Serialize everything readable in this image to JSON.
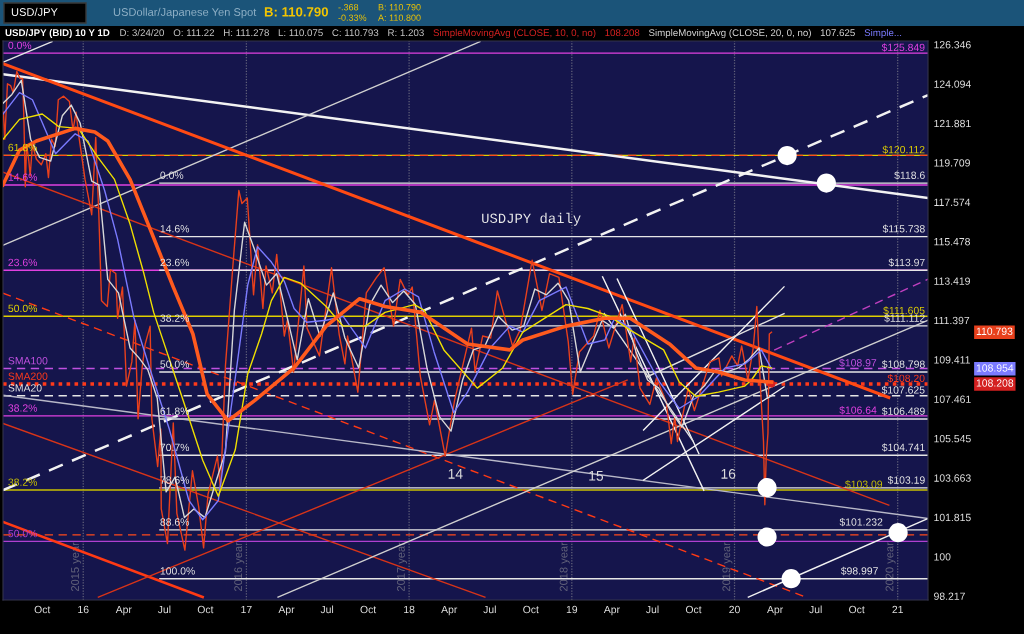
{
  "chart_data": {
    "type": "line",
    "title": "USDJPY daily",
    "subtitle": "USD/JPY (BID) 10 Y 1D",
    "log": true,
    "legend": "top",
    "xlim": [
      "2015-07-05",
      "2021-03-10"
    ],
    "ylim": [
      98.04,
      126.55
    ],
    "xticks": [
      {
        "value": "2015-10-01",
        "label": "Oct"
      },
      {
        "value": "2016-01-01",
        "label": "16"
      },
      {
        "value": "2016-04-01",
        "label": "Apr"
      },
      {
        "value": "2016-07-01",
        "label": "Jul"
      },
      {
        "value": "2016-10-01",
        "label": "Oct"
      },
      {
        "value": "2017-01-01",
        "label": "17"
      },
      {
        "value": "2017-04-01",
        "label": "Apr"
      },
      {
        "value": "2017-07-01",
        "label": "Jul"
      },
      {
        "value": "2017-10-01",
        "label": "Oct"
      },
      {
        "value": "2018-01-01",
        "label": "18"
      },
      {
        "value": "2018-04-01",
        "label": "Apr"
      },
      {
        "value": "2018-07-01",
        "label": "Jul"
      },
      {
        "value": "2018-10-01",
        "label": "Oct"
      },
      {
        "value": "2019-01-01",
        "label": "19"
      },
      {
        "value": "2019-04-01",
        "label": "Apr"
      },
      {
        "value": "2019-07-01",
        "label": "Jul"
      },
      {
        "value": "2019-10-01",
        "label": "Oct"
      },
      {
        "value": "2020-01-01",
        "label": "20"
      },
      {
        "value": "2020-04-01",
        "label": "Apr"
      },
      {
        "value": "2020-07-01",
        "label": "Jul"
      },
      {
        "value": "2020-10-01",
        "label": "Oct"
      },
      {
        "value": "2021-01-01",
        "label": "21"
      }
    ],
    "yticks": [
      98.217,
      100,
      101.815,
      103.663,
      105.545,
      107.461,
      109.411,
      111.397,
      113.419,
      115.478,
      117.574,
      119.709,
      121.881,
      124.094,
      126.346
    ],
    "series": [
      {
        "color": "#e8401c",
        "x": [
          "2015-07-06",
          "2015-07-09",
          "2015-07-15",
          "2015-07-22",
          "2015-07-28",
          "2015-08-05",
          "2015-08-12",
          "2015-08-18",
          "2015-08-21",
          "2015-08-24",
          "2015-08-27",
          "2015-09-01",
          "2015-09-04",
          "2015-09-09",
          "2015-09-18",
          "2015-09-29",
          "2015-10-09",
          "2015-10-15",
          "2015-10-22",
          "2015-10-30",
          "2015-11-06",
          "2015-11-18",
          "2015-12-01",
          "2015-12-09",
          "2015-12-16",
          "2015-12-22",
          "2016-01-05",
          "2016-01-20",
          "2016-01-29",
          "2016-02-05",
          "2016-02-11",
          "2016-02-24",
          "2016-03-02",
          "2016-03-14",
          "2016-03-18",
          "2016-03-29",
          "2016-04-07",
          "2016-04-19",
          "2016-04-26",
          "2016-05-03",
          "2016-05-12",
          "2016-05-19",
          "2016-05-30",
          "2016-06-03",
          "2016-06-16",
          "2016-06-23",
          "2016-06-24",
          "2016-07-08",
          "2016-07-21",
          "2016-07-29",
          "2016-08-16",
          "2016-09-02",
          "2016-09-16",
          "2016-09-27",
          "2016-10-07",
          "2016-10-28",
          "2016-11-04",
          "2016-11-15",
          "2016-12-01",
          "2016-12-15",
          "2016-12-22",
          "2017-01-03",
          "2017-01-17",
          "2017-01-26",
          "2017-02-07",
          "2017-02-14",
          "2017-02-28",
          "2017-03-10",
          "2017-03-27",
          "2017-04-03",
          "2017-04-17",
          "2017-05-10",
          "2017-05-17",
          "2017-06-14",
          "2017-07-11",
          "2017-07-28",
          "2017-08-10",
          "2017-08-16",
          "2017-09-08",
          "2017-09-27",
          "2017-10-20",
          "2017-11-06",
          "2017-11-27",
          "2017-12-12",
          "2017-12-29",
          "2018-01-08",
          "2018-01-26",
          "2018-02-16",
          "2018-02-27",
          "2018-03-23",
          "2018-04-13",
          "2018-05-21",
          "2018-05-29",
          "2018-06-15",
          "2018-07-03",
          "2018-07-18",
          "2018-08-21",
          "2018-09-07",
          "2018-10-04",
          "2018-10-26",
          "2018-11-12",
          "2018-12-03",
          "2018-12-24",
          "2019-01-03",
          "2019-01-18",
          "2019-02-19",
          "2019-03-05",
          "2019-03-25",
          "2019-04-24",
          "2019-05-13",
          "2019-05-21",
          "2019-06-03",
          "2019-06-25",
          "2019-07-10",
          "2019-08-01",
          "2019-08-12",
          "2019-08-20",
          "2019-08-26",
          "2019-09-19",
          "2019-10-03",
          "2019-11-07",
          "2019-11-27",
          "2019-12-03",
          "2019-12-26",
          "2020-01-08",
          "2020-01-17",
          "2020-01-31",
          "2020-02-12",
          "2020-02-20",
          "2020-02-28",
          "2020-03-06",
          "2020-03-09",
          "2020-03-12",
          "2020-03-16",
          "2020-03-19",
          "2020-03-24"
        ],
        "values": [
          122.5,
          121.0,
          124.1,
          124.0,
          123.6,
          124.8,
          124.4,
          124.4,
          122.0,
          118.4,
          120.7,
          119.8,
          119.0,
          120.7,
          119.9,
          119.6,
          120.2,
          118.9,
          121.0,
          120.6,
          123.2,
          123.4,
          123.1,
          121.5,
          122.5,
          121.2,
          118.8,
          116.9,
          121.1,
          116.9,
          112.4,
          112.1,
          114.0,
          113.8,
          111.5,
          113.1,
          108.1,
          109.3,
          111.4,
          106.5,
          109.0,
          110.2,
          111.1,
          106.5,
          104.2,
          106.0,
          102.2,
          100.6,
          106.3,
          102.0,
          100.3,
          104.0,
          102.3,
          100.4,
          102.9,
          104.7,
          103.1,
          109.1,
          114.0,
          118.2,
          117.5,
          117.8,
          112.7,
          115.3,
          112.0,
          114.2,
          112.8,
          114.8,
          110.6,
          111.4,
          108.8,
          114.2,
          111.0,
          109.6,
          114.1,
          110.7,
          109.2,
          110.6,
          107.8,
          112.8,
          113.6,
          114.1,
          111.1,
          113.5,
          112.7,
          113.1,
          108.6,
          106.2,
          107.4,
          104.7,
          107.4,
          111.0,
          108.8,
          110.6,
          110.5,
          112.9,
          110.1,
          110.9,
          114.5,
          111.9,
          113.8,
          113.6,
          110.3,
          107.7,
          109.8,
          110.6,
          111.9,
          110.0,
          112.2,
          109.3,
          110.5,
          108.0,
          107.2,
          108.5,
          107.3,
          105.3,
          106.6,
          105.4,
          108.0,
          106.9,
          109.3,
          109.5,
          108.6,
          109.6,
          109.1,
          110.1,
          108.4,
          110.0,
          112.1,
          108.1,
          105.4,
          102.4,
          104.6,
          105.8,
          110.7,
          110.793
        ]
      },
      {
        "name": "SimpleMovingAvg (CLOSE, 10, 0, no)",
        "color": "#d42020",
        "marker": "circle",
        "x": [
          "2020-03-24"
        ],
        "values": [
          108.208
        ]
      },
      {
        "name": "SimpleMovingAvg (CLOSE, 20, 0, no)",
        "color": "#d8d8d8",
        "x": [
          "2015-07-05",
          "2015-07-25",
          "2015-08-15",
          "2015-09-05",
          "2015-09-25",
          "2015-10-20",
          "2015-11-15",
          "2015-12-05",
          "2015-12-25",
          "2016-01-20",
          "2016-02-05",
          "2016-02-25",
          "2016-03-20",
          "2016-04-15",
          "2016-05-05",
          "2016-05-25",
          "2016-06-15",
          "2016-07-05",
          "2016-07-25",
          "2016-08-15",
          "2016-09-05",
          "2016-09-30",
          "2016-10-25",
          "2016-11-15",
          "2016-12-05",
          "2016-12-28",
          "2017-01-20",
          "2017-02-15",
          "2017-03-10",
          "2017-04-05",
          "2017-04-25",
          "2017-05-20",
          "2017-06-15",
          "2017-07-15",
          "2017-08-10",
          "2017-09-10",
          "2017-10-05",
          "2017-10-30",
          "2017-11-25",
          "2017-12-20",
          "2018-01-15",
          "2018-02-10",
          "2018-03-10",
          "2018-04-05",
          "2018-05-01",
          "2018-05-25",
          "2018-06-20",
          "2018-07-20",
          "2018-08-20",
          "2018-09-15",
          "2018-10-10",
          "2018-11-05",
          "2018-12-01",
          "2018-12-25",
          "2019-01-20",
          "2019-02-15",
          "2019-03-10",
          "2019-04-05",
          "2019-05-01",
          "2019-05-25",
          "2019-06-20",
          "2019-07-15",
          "2019-08-10",
          "2019-09-05",
          "2019-10-01",
          "2019-10-25",
          "2019-11-20",
          "2019-12-15",
          "2020-01-10",
          "2020-02-01",
          "2020-02-25",
          "2020-03-15",
          "2020-03-24"
        ],
        "values": [
          123.0,
          123.5,
          124.3,
          121.0,
          120.0,
          119.8,
          122.3,
          122.9,
          121.9,
          118.7,
          118.5,
          113.5,
          112.8,
          110.0,
          109.5,
          108.9,
          107.5,
          103.0,
          103.7,
          101.8,
          102.2,
          101.8,
          103.5,
          104.9,
          111.9,
          116.5,
          115.0,
          113.2,
          113.8,
          111.3,
          109.4,
          112.5,
          110.6,
          112.8,
          110.5,
          109.0,
          112.2,
          113.2,
          112.3,
          112.9,
          112.2,
          109.0,
          106.6,
          105.9,
          108.4,
          109.9,
          110.1,
          111.6,
          110.9,
          111.1,
          113.0,
          112.7,
          113.3,
          112.4,
          108.8,
          110.2,
          111.4,
          111.0,
          111.7,
          109.8,
          108.4,
          108.0,
          106.9,
          106.1,
          107.6,
          108.1,
          108.9,
          108.8,
          109.0,
          109.4,
          110.0,
          107.5,
          107.625
        ]
      },
      {
        "name": "Simple...",
        "color": "#7b7bff",
        "x": [
          "2015-07-05",
          "2015-08-11",
          "2015-09-09",
          "2015-10-31",
          "2015-12-14",
          "2016-01-12",
          "2016-02-18",
          "2016-03-18",
          "2016-04-24",
          "2016-05-29",
          "2016-07-12",
          "2016-08-25",
          "2016-09-25",
          "2016-10-30",
          "2016-12-07",
          "2017-01-04",
          "2017-01-26",
          "2017-02-26",
          "2017-03-27",
          "2017-04-18",
          "2017-05-16",
          "2017-06-29",
          "2017-08-06",
          "2017-09-25",
          "2017-11-08",
          "2017-12-22",
          "2018-01-22",
          "2018-02-26",
          "2018-04-11",
          "2018-05-12",
          "2018-07-02",
          "2018-08-15",
          "2018-09-13",
          "2018-10-20",
          "2018-12-19",
          "2019-02-06",
          "2019-03-16",
          "2019-04-07",
          "2019-05-12",
          "2019-07-17",
          "2019-08-30",
          "2019-10-13",
          "2019-12-11",
          "2020-01-24",
          "2020-03-01",
          "2020-03-24"
        ],
        "values": [
          122.4,
          123.6,
          123.2,
          120.2,
          121.3,
          120.9,
          118.2,
          115.6,
          111.5,
          109.0,
          106.0,
          102.6,
          101.7,
          102.6,
          108.5,
          113.2,
          115.2,
          114.4,
          113.4,
          112.0,
          111.3,
          111.4,
          111.6,
          110.0,
          112.4,
          113.0,
          112.6,
          109.8,
          106.8,
          107.8,
          110.0,
          111.1,
          110.8,
          112.4,
          113.1,
          110.2,
          110.4,
          111.5,
          111.0,
          108.3,
          107.0,
          107.6,
          109.0,
          109.2,
          109.9,
          108.954
        ]
      },
      {
        "color": "#f0e000",
        "x": [
          "2015-07-05",
          "2015-08-11",
          "2015-10-01",
          "2015-11-07",
          "2015-12-21",
          "2016-02-03",
          "2016-03-11",
          "2016-04-15",
          "2016-05-16",
          "2016-06-07",
          "2016-08-12",
          "2016-09-25",
          "2016-10-30",
          "2016-12-07",
          "2017-01-04",
          "2017-02-04",
          "2017-02-26",
          "2017-03-27",
          "2017-05-03",
          "2017-06-29",
          "2017-08-06",
          "2017-09-25",
          "2017-11-08",
          "2018-01-13",
          "2018-02-04",
          "2018-03-20",
          "2018-06-03",
          "2018-07-30",
          "2018-09-13",
          "2018-12-19",
          "2019-02-06",
          "2019-03-27",
          "2019-05-12",
          "2019-07-26",
          "2019-08-30",
          "2019-10-06",
          "2019-11-26",
          "2020-01-24",
          "2020-02-08",
          "2020-03-01",
          "2020-03-24"
        ],
        "values": [
          121.0,
          122.1,
          122.4,
          121.7,
          121.6,
          120.0,
          118.8,
          116.4,
          113.8,
          111.8,
          107.4,
          104.5,
          102.8,
          105.0,
          108.7,
          110.7,
          112.4,
          113.6,
          113.3,
          112.1,
          111.1,
          111.1,
          111.8,
          112.2,
          111.9,
          109.9,
          108.0,
          109.0,
          110.8,
          112.2,
          112.0,
          111.6,
          110.9,
          109.9,
          108.3,
          107.6,
          107.8,
          108.1,
          108.4,
          109.1,
          109.0
        ]
      },
      {
        "color": "#ff5a1e",
        "x": [
          "2015-07-05",
          "2015-08-11",
          "2015-09-18",
          "2015-12-14",
          "2016-01-27",
          "2016-02-25",
          "2016-04-15",
          "2016-05-29",
          "2016-07-21",
          "2016-09-03",
          "2016-10-05",
          "2016-11-21",
          "2017-01-20",
          "2017-04-18",
          "2017-06-29",
          "2017-09-12",
          "2017-11-08",
          "2018-01-28",
          "2018-05-12",
          "2018-08-15",
          "2018-09-13",
          "2018-12-19",
          "2019-03-16",
          "2019-05-12",
          "2019-08-08",
          "2019-10-06",
          "2019-11-26",
          "2020-01-24",
          "2020-03-24"
        ],
        "values": [
          118.5,
          120.4,
          120.9,
          121.6,
          121.4,
          120.9,
          118.8,
          116.2,
          113.1,
          110.7,
          107.7,
          106.4,
          107.4,
          109.0,
          111.1,
          112.5,
          112.1,
          111.8,
          110.2,
          109.9,
          110.4,
          111.1,
          111.5,
          111.5,
          110.2,
          109.0,
          108.8,
          108.4,
          108.3
        ]
      },
      {
        "type": "line",
        "color": "#e6e6e6",
        "x": [
          "2016-06-21",
          "2021-03-10"
        ],
        "values": [
          118.6,
          118.6
        ]
      },
      {
        "type": "line",
        "color": "#e6e6e6",
        "x": [
          "2016-06-21",
          "2021-03-10"
        ],
        "values": [
          115.738,
          115.738
        ]
      },
      {
        "type": "line",
        "color": "#e6e6e6",
        "x": [
          "2016-06-21",
          "2021-03-10"
        ],
        "values": [
          113.97,
          113.97
        ]
      },
      {
        "type": "line",
        "color": "#e6e6e6",
        "x": [
          "2016-06-21",
          "2021-03-10"
        ],
        "values": [
          111.112,
          111.112
        ]
      },
      {
        "type": "line",
        "color": "#e6e6e6",
        "x": [
          "2016-06-21",
          "2021-03-10"
        ],
        "values": [
          108.798,
          108.798
        ]
      },
      {
        "type": "line",
        "color": "#e6e6e6",
        "x": [
          "2016-06-21",
          "2021-03-10"
        ],
        "values": [
          106.489,
          106.489
        ]
      },
      {
        "type": "line",
        "color": "#e6e6e6",
        "x": [
          "2016-06-21",
          "2021-03-10"
        ],
        "values": [
          104.741,
          104.741
        ]
      },
      {
        "type": "line",
        "color": "#e6e6e6",
        "x": [
          "2016-06-21",
          "2021-03-10"
        ],
        "values": [
          103.19,
          103.19
        ]
      },
      {
        "type": "line",
        "color": "#e6e6e6",
        "x": [
          "2016-06-21",
          "2021-03-10"
        ],
        "values": [
          101.232,
          101.232
        ]
      },
      {
        "type": "line",
        "color": "#e6e6e6",
        "x": [
          "2016-06-21",
          "2021-03-10"
        ],
        "values": [
          98.997,
          98.997
        ]
      },
      {
        "type": "line",
        "color": "#f2f2f2",
        "x": [
          "2015-07-05",
          "2021-03-10"
        ],
        "values": [
          124.64,
          117.8
        ]
      },
      {
        "type": "line",
        "color": "#e6e6e6",
        "x": [
          "2015-07-05",
          "2015-10-23"
        ],
        "values": [
          125.33,
          126.51
        ]
      },
      {
        "type": "line",
        "color": "#d0d0d0",
        "x": [
          "2015-07-05",
          "2018-06-09"
        ],
        "values": [
          115.28,
          126.51
        ]
      },
      {
        "type": "line",
        "color": "#f2f2f2",
        "line_style": "dashed",
        "x": [
          "2015-07-05",
          "2021-03-10"
        ],
        "values": [
          103.08,
          123.46
        ]
      },
      {
        "type": "line",
        "color": "#ff4a14",
        "x": [
          "2015-07-05",
          "2020-12-12"
        ],
        "values": [
          125.25,
          107.54
        ]
      },
      {
        "type": "line",
        "color": "#d83418",
        "x": [
          "2015-07-05",
          "2020-12-12"
        ],
        "values": [
          119.19,
          102.38
        ]
      },
      {
        "type": "line",
        "color": "#ff3a14",
        "line_style": "dashed",
        "x": [
          "2015-07-05",
          "2020-06-09"
        ],
        "values": [
          112.78,
          98.17
        ]
      },
      {
        "type": "line",
        "color": "#d83418",
        "x": [
          "2015-07-05",
          "2018-06-20"
        ],
        "values": [
          106.27,
          98.17
        ]
      },
      {
        "type": "line",
        "color": "#ff3a14",
        "x": [
          "2015-07-05",
          "2016-09-25"
        ],
        "values": [
          101.6,
          98.17
        ]
      },
      {
        "type": "line",
        "color": "#d83418",
        "x": [
          "2016-02-04",
          "2019-05-05"
        ],
        "values": [
          98.17,
          108.39
        ]
      },
      {
        "type": "line",
        "color": "#b8b8c8",
        "x": [
          "2015-07-05",
          "2021-03-10"
        ],
        "values": [
          107.65,
          101.76
        ]
      },
      {
        "type": "line",
        "color": "#d0d0d0",
        "x": [
          "2017-03-13",
          "2021-03-10"
        ],
        "values": [
          98.17,
          111.4
        ]
      },
      {
        "type": "line",
        "color": "#f2f2f2",
        "x": [
          "2020-02-01",
          "2021-03-10"
        ],
        "values": [
          98.17,
          101.76
        ]
      },
      {
        "type": "line",
        "color": "#c040c0",
        "line_style": "dashed",
        "x": [
          "2020-03-30",
          "2021-03-10"
        ],
        "values": [
          109.89,
          113.51
        ]
      },
      {
        "type": "line",
        "color": "#f2f2f2",
        "x": [
          "2019-03-11",
          "2019-10-24"
        ],
        "values": [
          113.63,
          103.08
        ]
      },
      {
        "type": "line",
        "color": "#f2f2f2",
        "x": [
          "2019-04-13",
          "2019-10-13"
        ],
        "values": [
          113.51,
          104.82
        ]
      },
      {
        "type": "line",
        "color": "#e0e0e0",
        "x": [
          "2019-03-15",
          "2019-09-29"
        ],
        "values": [
          111.74,
          105.44
        ]
      },
      {
        "type": "line",
        "color": "#f2f2f2",
        "x": [
          "2019-06-11",
          "2020-04-21"
        ],
        "values": [
          105.95,
          113.11
        ]
      },
      {
        "type": "line",
        "color": "#f2f2f2",
        "x": [
          "2019-06-11",
          "2020-04-21"
        ],
        "values": [
          103.56,
          108.06
        ]
      },
      {
        "type": "line",
        "color": "#e0e0e0",
        "x": [
          "2019-06-18",
          "2020-04-21"
        ],
        "values": [
          108.55,
          111.74
        ]
      },
      {
        "type": "scatter",
        "color": "#ffffff",
        "marker": "circle",
        "x": [
          "2020-04-28",
          "2020-07-25",
          "2020-03-14",
          "2020-03-14",
          "2020-05-07",
          "2021-01-02"
        ],
        "values": [
          120.1,
          118.6,
          103.2,
          100.9,
          99.0,
          101.1
        ]
      }
    ],
    "ref_lines": [
      {
        "axis": "y",
        "value": 125.849,
        "label": "$125.849",
        "color": "#e040e0",
        "line_style": "solid"
      },
      {
        "axis": "y",
        "value": 118.5,
        "label": null,
        "color": "#e040e0",
        "line_style": "solid"
      },
      {
        "axis": "y",
        "value": 113.97,
        "label": null,
        "color": "#e040e0",
        "line_style": "solid"
      },
      {
        "axis": "y",
        "value": 106.64,
        "label": "$106.64",
        "color": "#e040e0",
        "line_style": "solid"
      },
      {
        "axis": "y",
        "value": 100.7,
        "label": null,
        "color": "#b040d0",
        "line_style": "solid"
      },
      {
        "axis": "y",
        "value": 120.112,
        "label": "$120.112",
        "color": "#e0d000",
        "line_style": "solid"
      },
      {
        "axis": "y",
        "value": 111.605,
        "label": "$111.605",
        "color": "#e0d000",
        "line_style": "solid"
      },
      {
        "axis": "y",
        "value": 103.09,
        "label": "$103.09",
        "color": "#c8c000",
        "line_style": "solid"
      },
      {
        "axis": "y",
        "value": 120.112,
        "label": null,
        "color": "#ff4a1a",
        "line_style": "dashed"
      },
      {
        "axis": "y",
        "value": 101.0,
        "label": null,
        "color": "#ff4a1a",
        "line_style": "dashed"
      },
      {
        "axis": "y",
        "value": 108.97,
        "label": "$108.97",
        "color": "#c050e0",
        "line_style": "dashed"
      },
      {
        "axis": "y",
        "value": 108.2,
        "label": "$108.20",
        "color": "#ff3a1a",
        "line_style": "dotted"
      },
      {
        "axis": "y",
        "value": 107.625,
        "label": "$107.625",
        "color": "#e6e6e6",
        "line_style": "dashed"
      },
      {
        "axis": "x",
        "value": "2016-01-01",
        "label": "2015 year",
        "color": "#62627a",
        "line_style": "dotted"
      },
      {
        "axis": "x",
        "value": "2017-01-01",
        "label": "2016 year",
        "color": "#62627a",
        "line_style": "dotted"
      },
      {
        "axis": "x",
        "value": "2018-01-01",
        "label": "2017 year",
        "color": "#62627a",
        "line_style": "dotted"
      },
      {
        "axis": "x",
        "value": "2019-01-01",
        "label": "2018 year",
        "color": "#62627a",
        "line_style": "dotted"
      },
      {
        "axis": "x",
        "value": "2020-01-01",
        "label": "2019 year",
        "color": "#62627a",
        "line_style": "dotted"
      },
      {
        "axis": "x",
        "value": "2021-01-01",
        "label": "2020 year",
        "color": "#62627a",
        "line_style": "dotted"
      }
    ],
    "annotations": [
      "USD/JPY",
      "USDollar/Japanese Yen Spot",
      "B: 110.790",
      "-.368",
      "-0.33%",
      "B: 110.790",
      "A: 110.800",
      "D: 3/24/20",
      "O: 111.22",
      "H: 111.278",
      "L: 110.075",
      "C: 110.793",
      "R: 1.203",
      "14",
      "15",
      "16",
      "108.208",
      "107.625",
      "110.793",
      "108.954",
      "108.208",
      {
        "text": "0.0%",
        "x": "2015-07-16",
        "y": 125.849
      },
      {
        "text": "14.6%",
        "x": "2015-07-16",
        "y": 118.5
      },
      {
        "text": "23.6%",
        "x": "2015-07-16",
        "y": 113.97
      },
      {
        "text": "38.2%",
        "x": "2015-07-16",
        "y": 106.64
      },
      {
        "text": "50.0%",
        "x": "2015-07-16",
        "y": 100.7
      },
      {
        "text": "61.8%",
        "x": "2015-07-16",
        "y": 120.112
      },
      {
        "text": "50.0%",
        "x": "2015-07-16",
        "y": 111.605
      },
      {
        "text": "38.2%",
        "x": "2015-07-16",
        "y": 103.09
      },
      {
        "text": "SMA100",
        "x": "2015-07-16",
        "y": 108.97
      },
      {
        "text": "SMA200",
        "x": "2015-07-16",
        "y": 108.2
      },
      {
        "text": "SMA20",
        "x": "2015-07-16",
        "y": 107.625
      },
      {
        "text": "0.0%",
        "x": "2016-06-21",
        "y": 118.6
      },
      {
        "text": "14.6%",
        "x": "2016-06-21",
        "y": 115.738
      },
      {
        "text": "23.6%",
        "x": "2016-06-21",
        "y": 113.97
      },
      {
        "text": "38.2%",
        "x": "2016-06-21",
        "y": 111.112
      },
      {
        "text": "50.0%",
        "x": "2016-06-21",
        "y": 108.798
      },
      {
        "text": "61.8%",
        "x": "2016-06-21",
        "y": 106.489
      },
      {
        "text": "70.7%",
        "x": "2016-06-21",
        "y": 104.741
      },
      {
        "text": "78.6%",
        "x": "2016-06-21",
        "y": 103.19
      },
      {
        "text": "88.6%",
        "x": "2016-06-21",
        "y": 101.232
      },
      {
        "text": "100.0%",
        "x": "2016-06-21",
        "y": 98.997
      },
      {
        "text": "$118.6",
        "x": "2021-03-10",
        "y": 118.6
      },
      {
        "text": "$115.738",
        "x": "2021-03-10",
        "y": 115.738
      },
      {
        "text": "$113.97",
        "x": "2021-03-10",
        "y": 113.97
      },
      {
        "text": "$111.112",
        "x": "2021-03-10",
        "y": 111.112
      },
      {
        "text": "$108.798",
        "x": "2021-03-10",
        "y": 108.798
      },
      {
        "text": "$106.489",
        "x": "2021-03-10",
        "y": 106.489
      },
      {
        "text": "$104.741",
        "x": "2021-03-10",
        "y": 104.741
      },
      {
        "text": "$103.19",
        "x": "2021-03-10",
        "y": 103.19
      },
      {
        "text": "$101.232",
        "x": "2020-12-05",
        "y": 101.232
      },
      {
        "text": "$98.997",
        "x": "2020-11-25",
        "y": 98.997
      }
    ]
  }
}
